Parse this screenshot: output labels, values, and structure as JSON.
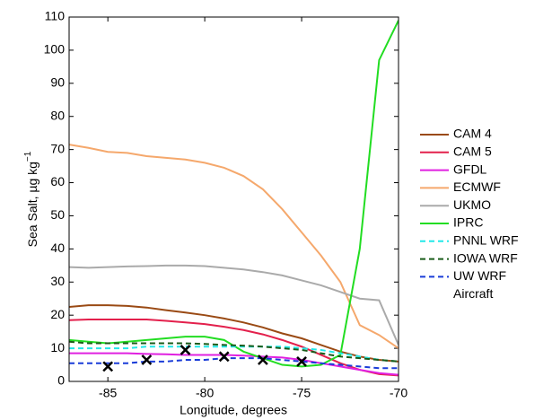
{
  "chart_data": {
    "type": "line",
    "xlabel": "Longitude, degrees",
    "ylabel": "Sea Salt, µg kg",
    "ylabel_superscript": "−1",
    "xlim": [
      -87,
      -70
    ],
    "xticks": [
      -85,
      -80,
      -75,
      -70
    ],
    "ylim": [
      0,
      110
    ],
    "yticks": [
      0,
      10,
      20,
      30,
      40,
      50,
      60,
      70,
      80,
      90,
      100,
      110
    ],
    "x": [
      -87,
      -86,
      -85,
      -84,
      -83,
      -82,
      -81,
      -80,
      -79,
      -78,
      -77,
      -76,
      -75,
      -74,
      -73,
      -72,
      -71,
      -70
    ],
    "legend": "outside-right",
    "series": [
      {
        "name": "CAM 4",
        "color": "#9a4a14",
        "style": "solid",
        "values": [
          22.5,
          23,
          23,
          22.8,
          22.3,
          21.5,
          20.8,
          20,
          19,
          17.8,
          16.3,
          14.5,
          13,
          11,
          9,
          7.5,
          6.5,
          6
        ]
      },
      {
        "name": "CAM 5",
        "color": "#e3204c",
        "style": "solid",
        "values": [
          18.5,
          18.7,
          18.7,
          18.7,
          18.7,
          18.3,
          17.8,
          17.3,
          16.5,
          15.5,
          14.2,
          12.5,
          10.5,
          8,
          5.5,
          3.5,
          2.2,
          1.8
        ]
      },
      {
        "name": "GFDL",
        "color": "#e020e0",
        "style": "solid",
        "values": [
          8.5,
          8.5,
          8.5,
          8.5,
          8.3,
          8.2,
          8,
          8,
          8,
          7.8,
          7.5,
          7.2,
          6.5,
          5.5,
          4.5,
          3.5,
          2.5,
          2
        ]
      },
      {
        "name": "ECMWF",
        "color": "#f5a86c",
        "style": "solid",
        "values": [
          71.5,
          70.5,
          69.3,
          69,
          68,
          67.5,
          67,
          66,
          64.5,
          62,
          58,
          52,
          45,
          38,
          30,
          17,
          14,
          10
        ]
      },
      {
        "name": "UKMO",
        "color": "#aaaaaa",
        "style": "solid",
        "values": [
          34.5,
          34.3,
          34.5,
          34.7,
          34.8,
          35,
          35,
          34.8,
          34.3,
          33.8,
          33,
          32,
          30.5,
          29,
          27,
          25,
          24.5,
          11
        ]
      },
      {
        "name": "IPRC",
        "color": "#22dd22",
        "style": "solid",
        "values": [
          12.5,
          12,
          11.5,
          12,
          12.5,
          13,
          13.5,
          13.5,
          12.5,
          9,
          7,
          5,
          4.5,
          5,
          8,
          40,
          97,
          109
        ]
      },
      {
        "name": "PNNL WRF",
        "color": "#22e8e8",
        "style": "dashed",
        "values": [
          10,
          10,
          10,
          10,
          10.5,
          10.5,
          10.5,
          10.5,
          10.5,
          10.5,
          10.5,
          10.5,
          10,
          9.5,
          8.5,
          7.5,
          6.5,
          6
        ]
      },
      {
        "name": "IOWA WRF",
        "color": "#1a5c1a",
        "style": "dashed",
        "values": [
          12,
          11.5,
          11.5,
          11.5,
          11.5,
          11.5,
          11.5,
          11.3,
          11,
          10.8,
          10.5,
          10,
          9.5,
          8.5,
          7.5,
          7,
          6.5,
          6
        ]
      },
      {
        "name": "UW WRF",
        "color": "#1a3cd8",
        "style": "dashed",
        "values": [
          5.5,
          5.5,
          5.5,
          5.5,
          6,
          6,
          6.5,
          6.5,
          7,
          7,
          7,
          6.5,
          6,
          5.5,
          5,
          4.5,
          4,
          4
        ]
      },
      {
        "name": "Aircraft",
        "type": "scatter",
        "marker": "x",
        "color": "#000000",
        "x": [
          -85,
          -83,
          -81,
          -79,
          -77,
          -75
        ],
        "values": [
          4.5,
          6.5,
          9.5,
          7.5,
          6.5,
          6
        ]
      }
    ]
  }
}
